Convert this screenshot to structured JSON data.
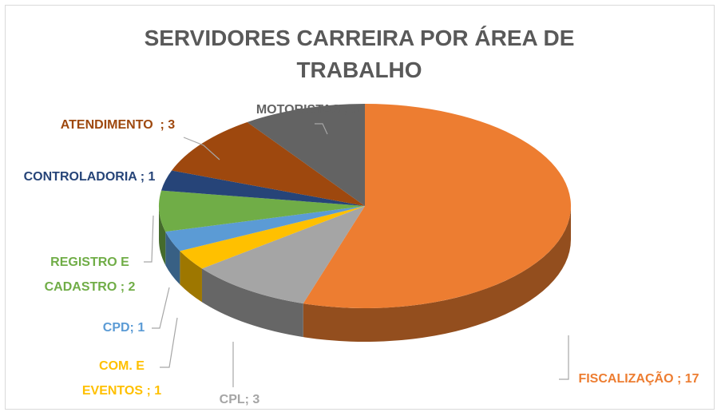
{
  "chart_data": {
    "type": "pie3d",
    "title": "SERVIDORES CARREIRA POR ÁREA DE TRABALHO",
    "values": [
      17,
      3,
      1,
      1,
      2,
      1,
      3,
      3
    ],
    "value_labels": [
      "FISCALIZAÇÃO ; 17",
      "CPL; 3",
      "COM. E EVENTOS ; 1",
      "CPD; 1",
      "REGISTRO E CADASTRO ; 2",
      "CONTROLADORIA ; 1",
      "ATENDIMENTO  ; 3",
      "MOTORISTAS ; 3"
    ],
    "colors": [
      "#ED7D31",
      "#A5A5A5",
      "#FFC000",
      "#5B9BD5",
      "#70AD47",
      "#264478",
      "#9E480E",
      "#636363"
    ]
  }
}
